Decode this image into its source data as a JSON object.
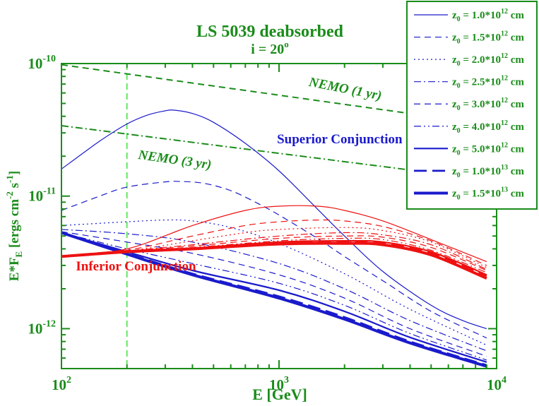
{
  "chart_data": {
    "type": "line",
    "title": "LS  5039 deabsorbed",
    "subtitle": "i = 20",
    "subtitle_sup": "o",
    "xlabel": "E  [GeV]",
    "ylabel_main": "E*F",
    "ylabel_sub": "E",
    "ylabel_rest": "  [ergs cm",
    "ylabel_exp1": "-2",
    "ylabel_s": " s",
    "ylabel_exp2": "-1",
    "ylabel_close": "]",
    "xscale": "log",
    "yscale": "log",
    "xlim": [
      100,
      10000
    ],
    "ylim": [
      5e-13,
      1e-10
    ],
    "x_ticks": [
      {
        "value": 100,
        "base": "10",
        "exp": "2"
      },
      {
        "value": 1000,
        "base": "10",
        "exp": "3"
      },
      {
        "value": 10000,
        "base": "10",
        "exp": "4"
      }
    ],
    "y_ticks": [
      {
        "value": 1e-12,
        "base": "10",
        "exp": "-12"
      },
      {
        "value": 1e-11,
        "base": "10",
        "exp": "-11"
      },
      {
        "value": 1e-10,
        "base": "10",
        "exp": "-10"
      }
    ],
    "vline": {
      "x": 200,
      "color": "#22dd22"
    },
    "annotations": [
      {
        "text": "NEMO (1 yr)",
        "color": "#1a8c1a",
        "italic": true,
        "x": 2000,
        "y": 6e-11,
        "rotate": 11
      },
      {
        "text": "NEMO (3 yr)",
        "color": "#1a8c1a",
        "italic": true,
        "x": 330,
        "y": 1.75e-11,
        "rotate": 8
      },
      {
        "text": "Superior Conjunction",
        "color": "#1a1acc",
        "italic": false,
        "x": 1900,
        "y": 2.5e-11,
        "rotate": 0
      },
      {
        "text": "Inferior Conjunction",
        "color": "#ee1111",
        "italic": false,
        "x": 220,
        "y": 2.75e-12,
        "rotate": 0
      }
    ],
    "series": [
      {
        "name": "NEMO (1 yr)",
        "color": "#1a8c1a",
        "dash": "dashed",
        "width": 2,
        "x": [
          100,
          10000
        ],
        "y": [
          9.8e-11,
          3.4e-11
        ]
      },
      {
        "name": "NEMO (3 yr)",
        "color": "#1a8c1a",
        "dash": "dashdot",
        "width": 2,
        "x": [
          100,
          10000
        ],
        "y": [
          3.4e-11,
          1.3e-11
        ]
      },
      {
        "name": "sup z0 = 1.0*10^12",
        "color": "#1a1acc",
        "dash": "solid",
        "width": 1.2,
        "x": [
          100,
          150,
          200,
          250,
          300,
          330,
          400,
          500,
          700,
          1000,
          1500,
          2000,
          3000,
          5000,
          7000,
          9000
        ],
        "y": [
          1.6e-11,
          2.6e-11,
          3.5e-11,
          4.1e-11,
          4.4e-11,
          4.45e-11,
          4.2e-11,
          3.6e-11,
          2.5e-11,
          1.55e-11,
          8e-12,
          5e-12,
          2.7e-12,
          1.5e-12,
          1.15e-12,
          1e-12
        ]
      },
      {
        "name": "sup z0 = 1.5*10^12",
        "color": "#1a1acc",
        "dash": "dashed",
        "width": 1.2,
        "x": [
          100,
          150,
          200,
          300,
          350,
          450,
          600,
          800,
          1000,
          1500,
          2000,
          3000,
          5000,
          9000
        ],
        "y": [
          7.8e-12,
          1e-11,
          1.17e-11,
          1.28e-11,
          1.29e-11,
          1.25e-11,
          1.1e-11,
          8.8e-12,
          7.2e-12,
          4.8e-12,
          3.5e-12,
          2.3e-12,
          1.35e-12,
          8.5e-13
        ]
      },
      {
        "name": "sup z0 = 2.0*10^12",
        "color": "#1a1acc",
        "dash": "dotted",
        "width": 1.2,
        "x": [
          100,
          200,
          300,
          400,
          600,
          1000,
          2000,
          4000,
          9000
        ],
        "y": [
          6e-12,
          6.4e-12,
          6.6e-12,
          6.5e-12,
          5.8e-12,
          4.4e-12,
          2.6e-12,
          1.4e-12,
          7.5e-13
        ]
      },
      {
        "name": "sup z0 = 2.5*10^12",
        "color": "#1a1acc",
        "dash": "dashdot",
        "width": 1.2,
        "x": [
          100,
          200,
          400,
          1000,
          2000,
          4000,
          9000
        ],
        "y": [
          5.6e-12,
          5.2e-12,
          4.5e-12,
          3.1e-12,
          2e-12,
          1.15e-12,
          6.8e-13
        ]
      },
      {
        "name": "sup z0 = 3.0*10^12",
        "color": "#1a1acc",
        "dash": "dashed",
        "width": 1.2,
        "x": [
          100,
          200,
          400,
          1000,
          2000,
          4000,
          9000
        ],
        "y": [
          5.4e-12,
          4.5e-12,
          3.7e-12,
          2.55e-12,
          1.7e-12,
          1e-12,
          6.2e-13
        ]
      },
      {
        "name": "sup z0 = 4.0*10^12",
        "color": "#1a1acc",
        "dash": "dashdotdot",
        "width": 1.2,
        "x": [
          100,
          200,
          400,
          1000,
          2000,
          4000,
          9000
        ],
        "y": [
          5.3e-12,
          4e-12,
          3.1e-12,
          2.2e-12,
          1.5e-12,
          9.2e-13,
          5.8e-13
        ]
      },
      {
        "name": "sup z0 = 5.0*10^12",
        "color": "#1a1acc",
        "dash": "solid",
        "width": 2.2,
        "x": [
          100,
          200,
          400,
          1000,
          2000,
          4000,
          9000
        ],
        "y": [
          5.3e-12,
          3.8e-12,
          2.75e-12,
          1.95e-12,
          1.35e-12,
          8.6e-13,
          5.6e-13
        ]
      },
      {
        "name": "sup z0 = 1.0*10^13",
        "color": "#1a1acc",
        "dash": "longdash",
        "width": 2.8,
        "x": [
          100,
          200,
          400,
          1000,
          2000,
          4000,
          9000
        ],
        "y": [
          5.3e-12,
          3.7e-12,
          2.6e-12,
          1.75e-12,
          1.22e-12,
          8e-13,
          5.3e-13
        ]
      },
      {
        "name": "sup z0 = 1.5*10^13",
        "color": "#1a1acc",
        "dash": "solid",
        "width": 4,
        "x": [
          100,
          200,
          400,
          1000,
          2000,
          4000,
          9000
        ],
        "y": [
          5.3e-12,
          3.65e-12,
          2.55e-12,
          1.7e-12,
          1.18e-12,
          7.8e-13,
          5.2e-13
        ]
      },
      {
        "name": "inf z0 = 1.0*10^12",
        "color": "#ee1111",
        "dash": "solid",
        "width": 1.2,
        "x": [
          100,
          200,
          400,
          700,
          1000,
          1500,
          2000,
          3000,
          5000,
          9000
        ],
        "y": [
          3.5e-12,
          4e-12,
          6e-12,
          7.8e-12,
          8.4e-12,
          8.4e-12,
          7.8e-12,
          6.5e-12,
          4.7e-12,
          3.2e-12
        ]
      },
      {
        "name": "inf z0 = 1.5*10^12",
        "color": "#ee1111",
        "dash": "dashed",
        "width": 1.2,
        "x": [
          100,
          200,
          400,
          700,
          1000,
          1500,
          2000,
          3000,
          5000,
          9000
        ],
        "y": [
          3.5e-12,
          3.9e-12,
          5e-12,
          6e-12,
          6.4e-12,
          6.6e-12,
          6.5e-12,
          5.9e-12,
          4.6e-12,
          3e-12
        ]
      },
      {
        "name": "inf z0 = 2.0*10^12",
        "color": "#ee1111",
        "dash": "dotted",
        "width": 1.2,
        "x": [
          100,
          200,
          400,
          700,
          1000,
          2000,
          3000,
          5000,
          9000
        ],
        "y": [
          3.5e-12,
          3.85e-12,
          4.6e-12,
          5.3e-12,
          5.6e-12,
          5.8e-12,
          5.5e-12,
          4.5e-12,
          2.9e-12
        ]
      },
      {
        "name": "inf z0 = 2.5*10^12",
        "color": "#ee1111",
        "dash": "dashdot",
        "width": 1.2,
        "x": [
          100,
          200,
          400,
          1000,
          2000,
          3000,
          5000,
          9000
        ],
        "y": [
          3.5e-12,
          3.85e-12,
          4.3e-12,
          5e-12,
          5.3e-12,
          5.1e-12,
          4.3e-12,
          2.8e-12
        ]
      },
      {
        "name": "inf z0 = 3.0*10^12",
        "color": "#ee1111",
        "dash": "dashed",
        "width": 1.2,
        "x": [
          100,
          200,
          400,
          1000,
          2000,
          3000,
          5000,
          9000
        ],
        "y": [
          3.5e-12,
          3.85e-12,
          4.2e-12,
          4.8e-12,
          5e-12,
          4.9e-12,
          4.1e-12,
          2.75e-12
        ]
      },
      {
        "name": "inf z0 = 4.0*10^12",
        "color": "#ee1111",
        "dash": "dashdotdot",
        "width": 1.2,
        "x": [
          100,
          200,
          400,
          1000,
          2000,
          3000,
          5000,
          9000
        ],
        "y": [
          3.5e-12,
          3.85e-12,
          4.1e-12,
          4.6e-12,
          4.8e-12,
          4.7e-12,
          3.9e-12,
          2.65e-12
        ]
      },
      {
        "name": "inf z0 = 5.0*10^12",
        "color": "#ee1111",
        "dash": "solid",
        "width": 2.2,
        "x": [
          100,
          200,
          400,
          1000,
          2000,
          3000,
          5000,
          9000
        ],
        "y": [
          3.5e-12,
          3.85e-12,
          4.05e-12,
          4.5e-12,
          4.6e-12,
          4.5e-12,
          3.8e-12,
          2.55e-12
        ]
      },
      {
        "name": "inf z0 = 1.0*10^13",
        "color": "#ee1111",
        "dash": "longdash",
        "width": 2.8,
        "x": [
          100,
          200,
          400,
          1000,
          2000,
          3000,
          5000,
          9000
        ],
        "y": [
          3.5e-12,
          3.85e-12,
          4e-12,
          4.4e-12,
          4.5e-12,
          4.4e-12,
          3.7e-12,
          2.5e-12
        ]
      },
      {
        "name": "inf z0 = 1.5*10^13",
        "color": "#ee1111",
        "dash": "solid",
        "width": 4,
        "x": [
          100,
          200,
          400,
          1000,
          2000,
          3000,
          5000,
          9000
        ],
        "y": [
          3.5e-12,
          3.8e-12,
          4e-12,
          4.35e-12,
          4.4e-12,
          4.3e-12,
          3.6e-12,
          2.4e-12
        ]
      }
    ],
    "legend": {
      "placement": "top-right",
      "color": "#1a1acc",
      "text_color": "#1a8c1a",
      "entries": [
        {
          "prefix": "z",
          "sub": "0",
          "mid": " = 1.0*10",
          "exp": "12",
          "unit": " cm",
          "dash": "solid",
          "width": 1.2
        },
        {
          "prefix": "z",
          "sub": "0",
          "mid": " = 1.5*10",
          "exp": "12",
          "unit": " cm",
          "dash": "dashed",
          "width": 1.2
        },
        {
          "prefix": "z",
          "sub": "0",
          "mid": " = 2.0*10",
          "exp": "12",
          "unit": " cm",
          "dash": "dotted",
          "width": 1.2
        },
        {
          "prefix": "z",
          "sub": "0",
          "mid": " = 2.5*10",
          "exp": "12",
          "unit": " cm",
          "dash": "dashdot",
          "width": 1.2
        },
        {
          "prefix": "z",
          "sub": "0",
          "mid": " = 3.0*10",
          "exp": "12",
          "unit": " cm",
          "dash": "dashed",
          "width": 1.2
        },
        {
          "prefix": "z",
          "sub": "0",
          "mid": " = 4.0*10",
          "exp": "12",
          "unit": " cm",
          "dash": "dashdotdot",
          "width": 1.2
        },
        {
          "prefix": "z",
          "sub": "0",
          "mid": " = 5.0*10",
          "exp": "12",
          "unit": " cm",
          "dash": "solid",
          "width": 2.2
        },
        {
          "prefix": "z",
          "sub": "0",
          "mid": " = 1.0*10",
          "exp": "13",
          "unit": " cm",
          "dash": "longdash",
          "width": 2.8
        },
        {
          "prefix": "z",
          "sub": "0",
          "mid": " = 1.5*10",
          "exp": "13",
          "unit": " cm",
          "dash": "solid",
          "width": 4
        }
      ]
    },
    "colors": {
      "axis": "#1a8c1a",
      "title": "#1a8c1a",
      "frame": "#1a8c1a"
    }
  }
}
